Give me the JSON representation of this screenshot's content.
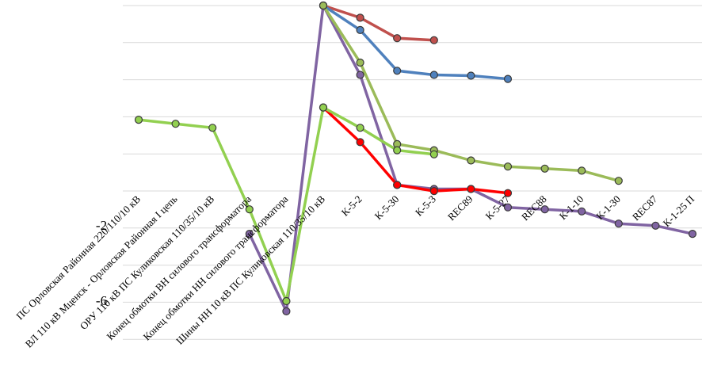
{
  "chart_data": {
    "type": "line",
    "title": "",
    "xlabel": "",
    "ylabel": "",
    "categories": [
      "ПС Орловская Районная 220/110/10 кВ",
      "ВЛ 110 кВ Мценск - Орловская Районная I цепь",
      "ОРУ 110 кВ ПС Куликовская 110/35/10 кВ",
      "Конец обмотки ВН силового трансформатора",
      "Конец обмотки НН силового трансформатора",
      "Шины НН 10 кВ ПС Куликовская 110/35/10 кВ",
      "К-5-2",
      "К-5-30",
      "К-5-3",
      "REC89",
      "К-5-27",
      "REC88",
      "К-1-10",
      "К-1-30",
      "REC87",
      "К-1-25 П"
    ],
    "y_tick_labels": [
      "-2",
      "-6"
    ],
    "ylim": [
      -8,
      1
    ],
    "grid": true,
    "series": [
      {
        "color": "#8064a2",
        "values": [
          null,
          null,
          null,
          -4.6,
          -6.5,
          1.0,
          -0.7,
          -3.4,
          -3.5,
          -3.5,
          -3.95,
          -4.0,
          -4.05,
          -4.35,
          -4.4,
          -4.6
        ]
      },
      {
        "color": "#c0504d",
        "values": [
          null,
          null,
          null,
          null,
          null,
          1.0,
          0.7,
          0.2,
          0.15,
          null,
          null,
          null,
          null,
          null,
          null,
          null
        ]
      },
      {
        "color": "#4f81bd",
        "values": [
          null,
          null,
          null,
          null,
          null,
          1.0,
          0.4,
          -0.6,
          -0.7,
          -0.72,
          -0.8,
          null,
          null,
          null,
          null,
          null
        ]
      },
      {
        "color": "#9bbb59",
        "values": [
          null,
          null,
          null,
          null,
          null,
          1.0,
          -0.4,
          -2.4,
          -2.55,
          -2.8,
          -2.95,
          -3.0,
          -3.05,
          -3.3,
          null,
          null
        ]
      },
      {
        "color": "#ff0000",
        "values": [
          null,
          null,
          null,
          null,
          null,
          -1.5,
          -2.35,
          -3.4,
          -3.55,
          -3.5,
          -3.6,
          null,
          null,
          null,
          null,
          null
        ]
      },
      {
        "color": "#92d050",
        "values": [
          -1.8,
          -1.9,
          -2.0,
          -4.0,
          -6.25,
          -1.5,
          -2.0,
          -2.55,
          -2.65,
          null,
          null,
          null,
          null,
          null,
          null,
          null
        ]
      }
    ]
  }
}
